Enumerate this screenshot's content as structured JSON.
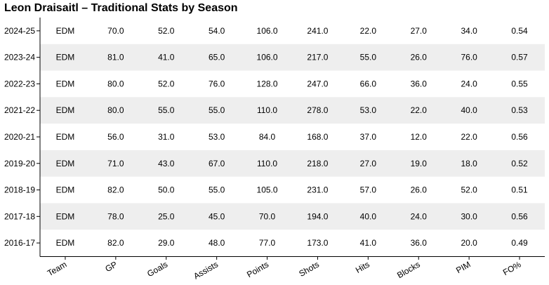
{
  "chart_data": {
    "type": "table",
    "title": "Leon Draisaitl – Traditional Stats by Season",
    "columns": [
      "Team",
      "GP",
      "Goals",
      "Assists",
      "Points",
      "Shots",
      "Hits",
      "Blocks",
      "PIM",
      "FO%"
    ],
    "rows": [
      {
        "season": "2024-25",
        "values": [
          "EDM",
          "70.0",
          "52.0",
          "54.0",
          "106.0",
          "241.0",
          "22.0",
          "27.0",
          "34.0",
          "0.54"
        ]
      },
      {
        "season": "2023-24",
        "values": [
          "EDM",
          "81.0",
          "41.0",
          "65.0",
          "106.0",
          "217.0",
          "55.0",
          "26.0",
          "76.0",
          "0.57"
        ]
      },
      {
        "season": "2022-23",
        "values": [
          "EDM",
          "80.0",
          "52.0",
          "76.0",
          "128.0",
          "247.0",
          "66.0",
          "36.0",
          "24.0",
          "0.55"
        ]
      },
      {
        "season": "2021-22",
        "values": [
          "EDM",
          "80.0",
          "55.0",
          "55.0",
          "110.0",
          "278.0",
          "53.0",
          "22.0",
          "40.0",
          "0.53"
        ]
      },
      {
        "season": "2020-21",
        "values": [
          "EDM",
          "56.0",
          "31.0",
          "53.0",
          "84.0",
          "168.0",
          "37.0",
          "12.0",
          "22.0",
          "0.56"
        ]
      },
      {
        "season": "2019-20",
        "values": [
          "EDM",
          "71.0",
          "43.0",
          "67.0",
          "110.0",
          "218.0",
          "27.0",
          "19.0",
          "18.0",
          "0.52"
        ]
      },
      {
        "season": "2018-19",
        "values": [
          "EDM",
          "82.0",
          "50.0",
          "55.0",
          "105.0",
          "231.0",
          "57.0",
          "26.0",
          "52.0",
          "0.51"
        ]
      },
      {
        "season": "2017-18",
        "values": [
          "EDM",
          "78.0",
          "25.0",
          "45.0",
          "70.0",
          "194.0",
          "40.0",
          "24.0",
          "30.0",
          "0.56"
        ]
      },
      {
        "season": "2016-17",
        "values": [
          "EDM",
          "82.0",
          "29.0",
          "48.0",
          "77.0",
          "173.0",
          "41.0",
          "36.0",
          "20.0",
          "0.49"
        ]
      }
    ],
    "colors": {
      "stripe": "#eeeeee",
      "background": "#ffffff",
      "axis": "#000000"
    }
  }
}
